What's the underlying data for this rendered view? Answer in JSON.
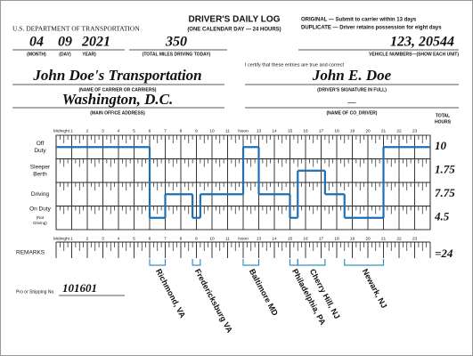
{
  "header": {
    "agency": "U.S. DEPARTMENT OF TRANSPORTATION",
    "title": "DRIVER'S DAILY LOG",
    "subtitle": "(ONE CALENDAR DAY — 24 HOURS)",
    "original": "ORIGINAL — Submit to carrier within 13 days",
    "duplicate": "DUPLICATE — Driver retains possession for eight days"
  },
  "date": {
    "month": "04",
    "day": "09",
    "year": "2021",
    "month_label": "(MONTH)",
    "day_label": "(DAY)",
    "year_label": "YEAR)"
  },
  "miles": {
    "value": "350",
    "label": "(TOTAL MILES DRIVING TODAY)"
  },
  "vehicle": {
    "value": "123, 20544",
    "label": "VEHICLE NUMBERS—(SHOW EACH UNIT)"
  },
  "certify": "I certify that these entries are true and correct",
  "carrier": {
    "value": "John Doe's Transportation",
    "label": "(NAME OF CARRIER OR CARRIERS)"
  },
  "signature": {
    "value": "John E. Doe",
    "label": "(DRIVER'S SIGNATURE IN FULL)"
  },
  "office": {
    "value": "Washington, D.C.",
    "label": "(MAIN OFFICE ADDRESS)"
  },
  "co_driver": {
    "value": "—",
    "label": "(NAME OF CO_DRIVER)"
  },
  "log": {
    "total_header": [
      "TOTAL",
      "HOURS"
    ],
    "hour_labels": [
      "Midnight",
      "1",
      "2",
      "3",
      "4",
      "5",
      "6",
      "7",
      "8",
      "9",
      "10",
      "11",
      "Noon",
      "13",
      "14",
      "15",
      "16",
      "17",
      "18",
      "19",
      "20",
      "21",
      "22",
      "23"
    ],
    "statuses": [
      {
        "label": [
          "Off",
          "Duty"
        ],
        "total": 10
      },
      {
        "label": [
          "Sleeper",
          "Berth"
        ],
        "total": 1.75
      },
      {
        "label": [
          "Driving"
        ],
        "total": 7.75
      },
      {
        "label": [
          "On Duty",
          "(Not",
          "Driving)"
        ],
        "total": 4.5
      }
    ],
    "segments": [
      {
        "status": 0,
        "start": 0,
        "end": 6
      },
      {
        "status": 3,
        "start": 6,
        "end": 7
      },
      {
        "status": 2,
        "start": 7,
        "end": 8.75
      },
      {
        "status": 3,
        "start": 8.75,
        "end": 9.25
      },
      {
        "status": 2,
        "start": 9.25,
        "end": 12
      },
      {
        "status": 0,
        "start": 12,
        "end": 13
      },
      {
        "status": 2,
        "start": 13,
        "end": 15
      },
      {
        "status": 3,
        "start": 15,
        "end": 15.5
      },
      {
        "status": 1,
        "start": 15.5,
        "end": 17.25
      },
      {
        "status": 2,
        "start": 17.25,
        "end": 18.5
      },
      {
        "status": 3,
        "start": 18.5,
        "end": 21
      },
      {
        "status": 0,
        "start": 21,
        "end": 24
      }
    ],
    "remarks_label": "REMARKS",
    "grand_total": "=24",
    "remarks": [
      {
        "label": "Richmond, VA",
        "start": 6,
        "end": 7
      },
      {
        "label": "Fredericksburg VA",
        "start": 8.75,
        "end": 9.25
      },
      {
        "label": "Baltimore MD",
        "start": 12,
        "end": 13
      },
      {
        "label": "Philadelphia, PA",
        "start": 15,
        "end": 15.5
      },
      {
        "label": "Cherry Hill, NJ",
        "start": 15.5,
        "end": 17.25
      },
      {
        "label": "Newark, NJ",
        "start": 18.5,
        "end": 21
      }
    ]
  },
  "shipping": {
    "label": "Pro or Shipping No.",
    "value": "101601"
  }
}
